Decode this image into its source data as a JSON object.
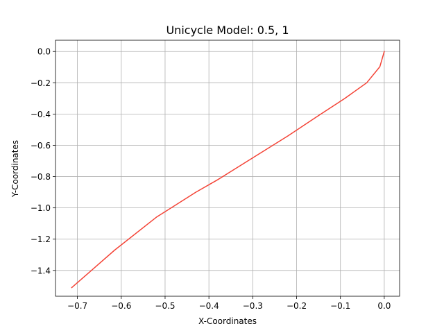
{
  "chart_data": {
    "type": "line",
    "title": "Unicycle Model: 0.5, 1",
    "xlabel": "X-Coordinates",
    "ylabel": "Y-Coordinates",
    "xlim": [
      -0.75,
      0.035
    ],
    "ylim": [
      -1.565,
      0.072
    ],
    "grid": true,
    "xticks": [
      -0.7,
      -0.6,
      -0.5,
      -0.4,
      -0.3,
      -0.2,
      -0.1,
      0.0
    ],
    "xtick_labels": [
      "−0.7",
      "−0.6",
      "−0.5",
      "−0.4",
      "−0.3",
      "−0.2",
      "−0.1",
      "0.0"
    ],
    "yticks": [
      0.0,
      -0.2,
      -0.4,
      -0.6,
      -0.8,
      -1.0,
      -1.2,
      -1.4
    ],
    "ytick_labels": [
      "0.0",
      "−0.2",
      "−0.4",
      "−0.6",
      "−0.8",
      "−1.0",
      "−1.2",
      "−1.4"
    ],
    "series": [
      {
        "color": "#f44336",
        "x": [
          0.0,
          -0.01,
          -0.04,
          -0.09,
          -0.15,
          -0.22,
          -0.3,
          -0.38,
          -0.43,
          -0.52,
          -0.615,
          -0.713
        ],
        "y": [
          0.0,
          -0.097,
          -0.2,
          -0.3,
          -0.41,
          -0.54,
          -0.68,
          -0.82,
          -0.9,
          -1.06,
          -1.27,
          -1.51
        ]
      }
    ]
  }
}
